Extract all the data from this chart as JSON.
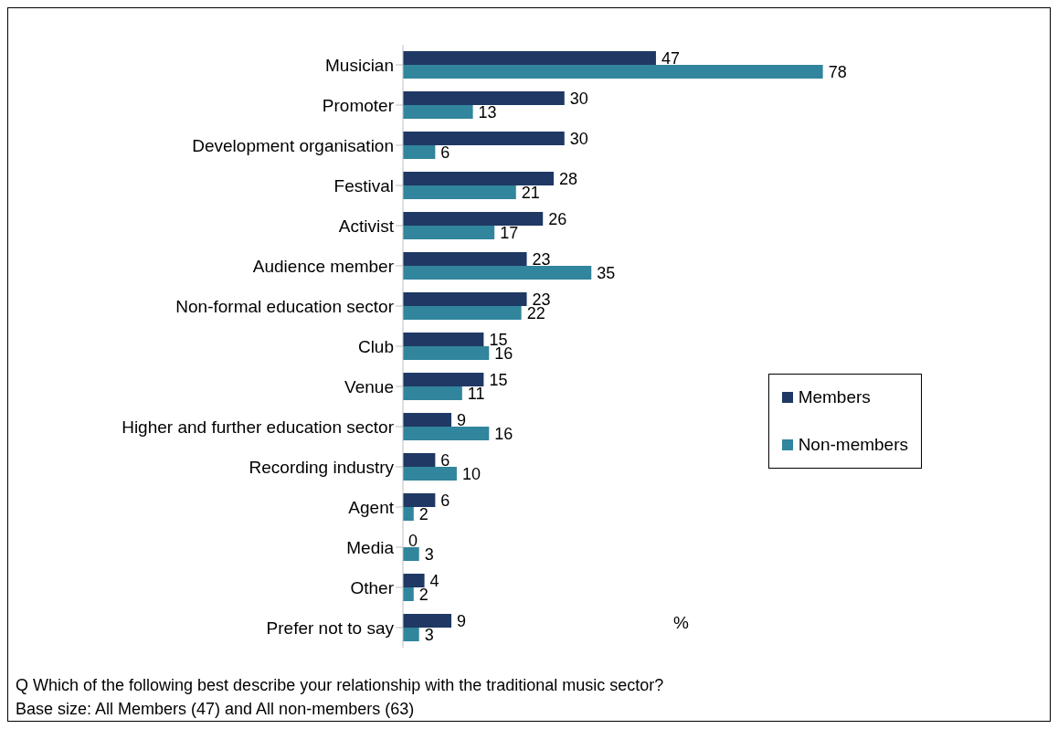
{
  "chart_data": {
    "type": "bar",
    "orientation": "horizontal",
    "categories": [
      "Musician",
      "Promoter",
      "Development organisation",
      "Festival",
      "Activist",
      "Audience member",
      "Non-formal education sector",
      "Club",
      "Venue",
      "Higher and further education sector",
      "Recording industry",
      "Agent",
      "Media",
      "Other",
      "Prefer not to say"
    ],
    "series": [
      {
        "name": "Members",
        "color": "#1f3864",
        "values": [
          47,
          30,
          30,
          28,
          26,
          23,
          23,
          15,
          15,
          9,
          6,
          6,
          0,
          4,
          9
        ]
      },
      {
        "name": "Non-members",
        "color": "#31859c",
        "values": [
          78,
          13,
          6,
          21,
          17,
          35,
          22,
          16,
          11,
          16,
          10,
          2,
          3,
          2,
          3
        ]
      }
    ],
    "data_labels": true,
    "xlabel": "%",
    "legend": "right",
    "annotations": [
      "Q  Which of the following best describe your relationship with the traditional music sector?",
      "Base size: All Members (47) and All non-members (63)"
    ]
  }
}
